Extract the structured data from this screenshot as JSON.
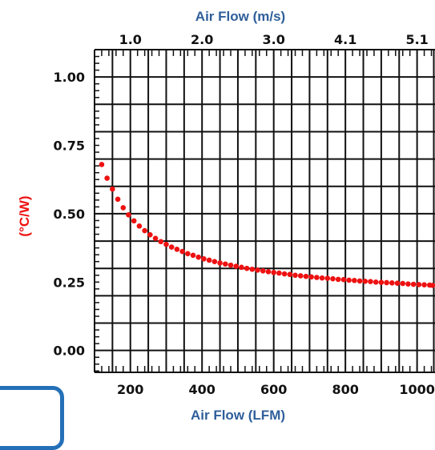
{
  "chart_data": {
    "type": "scatter",
    "title": "",
    "xlabel": "Air Flow (LFM)",
    "x2label": "Air Flow (m/s)",
    "ylabel": "(°C/W)",
    "xlim": [
      100,
      1050
    ],
    "ylim": [
      -0.08,
      1.1
    ],
    "x_ticks": [
      200,
      400,
      600,
      800,
      1000
    ],
    "x_tick_labels": [
      "200",
      "400",
      "600",
      "800",
      "1000"
    ],
    "x2_ticks": [
      200,
      400,
      600,
      800,
      1000
    ],
    "x2_tick_labels": [
      "1.0",
      "2.0",
      "3.0",
      "4.1",
      "5.1"
    ],
    "y_ticks": [
      0.0,
      0.25,
      0.5,
      0.75,
      1.0
    ],
    "y_tick_labels": [
      "0.00",
      "0.25",
      "0.50",
      "0.75",
      "1.00"
    ],
    "grid": true,
    "colors": {
      "series": "#ee1111",
      "axis_title": "#2f5f9a",
      "ylabel": "#ee1111",
      "grid": "#111111",
      "box": "#2470b8"
    },
    "series": [
      {
        "x": [
          120,
          135,
          150,
          165,
          180,
          195,
          210,
          225,
          240,
          255,
          270,
          285,
          300,
          315,
          330,
          345,
          360,
          375,
          390,
          405,
          420,
          435,
          450,
          465,
          480,
          495,
          510,
          525,
          540,
          555,
          570,
          585,
          600,
          615,
          630,
          645,
          660,
          675,
          690,
          705,
          720,
          735,
          750,
          765,
          780,
          795,
          810,
          825,
          840,
          855,
          870,
          885,
          900,
          915,
          930,
          945,
          960,
          975,
          990,
          1005,
          1020,
          1035,
          1050
        ],
        "y": [
          0.68,
          0.63,
          0.59,
          0.553,
          0.522,
          0.496,
          0.474,
          0.455,
          0.438,
          0.423,
          0.41,
          0.398,
          0.388,
          0.378,
          0.37,
          0.362,
          0.354,
          0.348,
          0.341,
          0.335,
          0.33,
          0.325,
          0.32,
          0.316,
          0.312,
          0.308,
          0.304,
          0.3,
          0.297,
          0.294,
          0.291,
          0.288,
          0.285,
          0.283,
          0.28,
          0.278,
          0.275,
          0.273,
          0.271,
          0.269,
          0.267,
          0.265,
          0.264,
          0.262,
          0.26,
          0.259,
          0.257,
          0.256,
          0.254,
          0.253,
          0.252,
          0.25,
          0.249,
          0.248,
          0.247,
          0.246,
          0.245,
          0.243,
          0.242,
          0.241,
          0.24,
          0.239,
          0.238
        ]
      }
    ]
  }
}
